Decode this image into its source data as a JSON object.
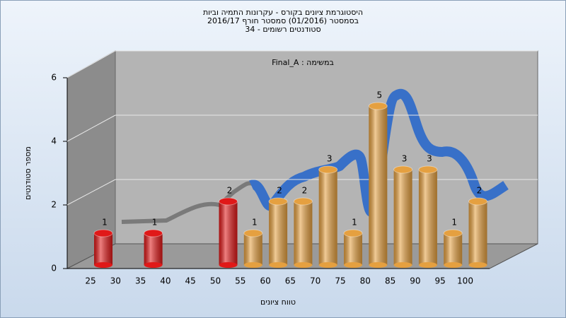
{
  "chart_data": {
    "type": "bar",
    "title": [
      "היסטוגרמת ציונים בקורס - עקרונות התמיה וביות",
      "בסמסטר  (01/2016)  סמסטר חורף 2016/17",
      "סטודנטים רשומים - 34"
    ],
    "subtitle": "Final_A : במשימה",
    "xlabel": "טווח ציונים",
    "ylabel": "מספר סטודנטים",
    "categories": [
      "25",
      "30",
      "35",
      "40",
      "45",
      "50",
      "55",
      "60",
      "65",
      "70",
      "75",
      "80",
      "85",
      "90",
      "95",
      "100"
    ],
    "values": [
      1,
      0,
      1,
      0,
      0,
      2,
      1,
      2,
      2,
      3,
      1,
      5,
      3,
      3,
      1,
      2
    ],
    "colors": [
      "#e01818",
      "#e01818",
      "#e01818",
      "#e01818",
      "#e01818",
      "#e01818",
      "#e5a040",
      "#e5a040",
      "#e5a040",
      "#e5a040",
      "#e5a040",
      "#e5a040",
      "#e5a040",
      "#e5a040",
      "#e5a040",
      "#e5a040"
    ],
    "ylim": [
      0,
      6
    ],
    "yticks": [
      0,
      2,
      4,
      6
    ],
    "grid": true
  }
}
